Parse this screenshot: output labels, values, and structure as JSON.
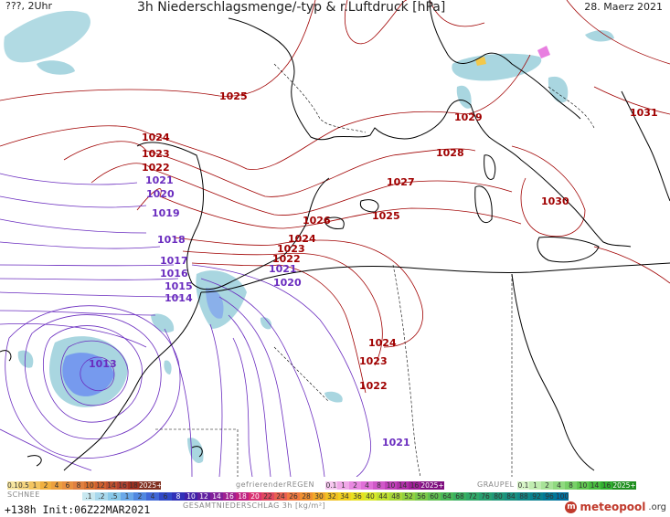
{
  "header": {
    "left": "???, 2Uhr",
    "title": "3h Niederschlagsmenge/-typ & r.Luftdruck [hPa]",
    "date": "28. Maerz 2021"
  },
  "isobar_labels": [
    {
      "text": "1025",
      "color": "#a00000"
    },
    {
      "text": "1029",
      "color": "#a00000"
    },
    {
      "text": "1031",
      "color": "#a00000"
    },
    {
      "text": "1028",
      "color": "#a00000"
    },
    {
      "text": "1027",
      "color": "#a00000"
    },
    {
      "text": "1030",
      "color": "#a00000"
    },
    {
      "text": "1026",
      "color": "#a00000"
    },
    {
      "text": "1025",
      "color": "#a00000"
    },
    {
      "text": "1024",
      "color": "#a00000"
    },
    {
      "text": "1023",
      "color": "#a00000"
    },
    {
      "text": "1022",
      "color": "#a00000"
    },
    {
      "text": "1024",
      "color": "#a00000"
    },
    {
      "text": "1023",
      "color": "#a00000"
    },
    {
      "text": "1022",
      "color": "#a00000"
    },
    {
      "text": "1024",
      "color": "#a00000"
    },
    {
      "text": "1023",
      "color": "#a00000"
    },
    {
      "text": "1022",
      "color": "#a00000"
    },
    {
      "text": "1021",
      "color": "#6a2cbf"
    },
    {
      "text": "1020",
      "color": "#6a2cbf"
    },
    {
      "text": "1019",
      "color": "#6a2cbf"
    },
    {
      "text": "1018",
      "color": "#6a2cbf"
    },
    {
      "text": "1017",
      "color": "#6a2cbf"
    },
    {
      "text": "1016",
      "color": "#6a2cbf"
    },
    {
      "text": "1015",
      "color": "#6a2cbf"
    },
    {
      "text": "1014",
      "color": "#6a2cbf"
    },
    {
      "text": "1021",
      "color": "#6a2cbf"
    },
    {
      "text": "1020",
      "color": "#6a2cbf"
    },
    {
      "text": "1013",
      "color": "#6a2cbf"
    },
    {
      "text": "1021",
      "color": "#6a2cbf"
    }
  ],
  "legend": {
    "schnee_label": "SCHNEE",
    "schnee_values": [
      "0.1",
      "0.5",
      "1",
      "2",
      "4",
      "6",
      "8",
      "10",
      "12",
      "14",
      "16",
      "18",
      "2025+"
    ],
    "regen_label": "gefrierenderREGEN",
    "regen_values": [
      "0.1",
      "1",
      "2",
      "4",
      "8",
      "10",
      "14",
      "16",
      "2025+"
    ],
    "graupel_label": "GRAUPEL",
    "graupel_values": [
      "0.1",
      "1",
      "2",
      "4",
      "8",
      "10",
      "14",
      "16",
      "2025+"
    ],
    "gesamt_values": [
      ".1",
      ".2",
      ".5",
      "1",
      "2",
      "4",
      "6",
      "8",
      "10",
      "12",
      "14",
      "16",
      "18",
      "20",
      "22",
      "24",
      "26",
      "28",
      "30",
      "32",
      "34",
      "36",
      "40",
      "44",
      "48",
      "52",
      "56",
      "60",
      "64",
      "68",
      "72",
      "76",
      "80",
      "84",
      "88",
      "92",
      "96",
      "100"
    ],
    "gesamt_label": "GESAMTNIEDERSCHLAG 3h [kg/m²]"
  },
  "footer": {
    "runinfo": "+138h Init:06Z22MAR2021",
    "logo": "meteopool",
    "logo_suffix": ".org"
  },
  "colors": {
    "high_isobar": "#a00000",
    "low_isobar": "#6a2cbf",
    "coast": "#000000",
    "rain_light": "#a9d6e0",
    "rain_blue": "#6d8ff0"
  }
}
